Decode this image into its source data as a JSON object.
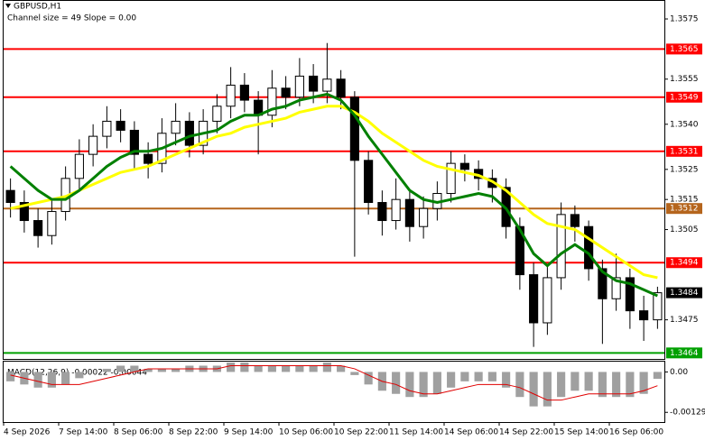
{
  "chart_data": [
    {
      "type": "candlestick",
      "title": "GBPUSD,H1",
      "subtitle": "Channel size = 49 Slope = 0.00",
      "categories": [
        "4 Sep 2026",
        null,
        null,
        null,
        "7 Sep 14:00",
        null,
        null,
        null,
        "8 Sep 06:00",
        null,
        null,
        null,
        "8 Sep 22:00",
        null,
        null,
        null,
        "9 Sep 14:00",
        null,
        null,
        null,
        "10 Sep 06:00",
        null,
        null,
        null,
        "10 Sep 22:00",
        null,
        null,
        null,
        "11 Sep 14:00",
        null,
        null,
        null,
        "14 Sep 06:00",
        null,
        null,
        null,
        "14 Sep 22:00",
        null,
        null,
        null,
        "15 Sep 14:00",
        null,
        null,
        null,
        "16 Sep 06:00",
        null,
        null,
        null
      ],
      "open": [
        1.3518,
        1.3514,
        1.3508,
        1.3503,
        1.3511,
        1.3522,
        1.353,
        1.3536,
        1.3541,
        1.3538,
        1.353,
        1.3527,
        1.3537,
        1.3541,
        1.3533,
        1.3541,
        1.3546,
        1.3553,
        1.3548,
        1.3543,
        1.3552,
        1.3549,
        1.3556,
        1.3551,
        1.3555,
        1.3549,
        1.3528,
        1.3514,
        1.3508,
        1.3515,
        1.3506,
        1.3512,
        1.3517,
        1.3527,
        1.3525,
        1.3522,
        1.3519,
        1.3506,
        1.349,
        1.3474,
        1.3489,
        1.351,
        1.3506,
        1.3492,
        1.3482,
        1.3489,
        1.3478,
        1.3475
      ],
      "high": [
        1.3522,
        1.3518,
        1.3512,
        1.3515,
        1.3526,
        1.3535,
        1.354,
        1.3546,
        1.3545,
        1.3541,
        1.3534,
        1.3542,
        1.3547,
        1.3544,
        1.3545,
        1.355,
        1.3559,
        1.3557,
        1.3551,
        1.3558,
        1.3556,
        1.3562,
        1.356,
        1.3567,
        1.3558,
        1.3551,
        1.3531,
        1.3518,
        1.3522,
        1.3518,
        1.3516,
        1.3521,
        1.3531,
        1.353,
        1.3528,
        1.3525,
        1.3522,
        1.3509,
        1.3494,
        1.3493,
        1.3514,
        1.3513,
        1.3508,
        1.3495,
        1.3497,
        1.3492,
        1.3483,
        1.3486
      ],
      "low": [
        1.3509,
        1.3504,
        1.3499,
        1.35,
        1.3508,
        1.3518,
        1.3526,
        1.3532,
        1.3534,
        1.3525,
        1.3522,
        1.3524,
        1.3533,
        1.3529,
        1.353,
        1.3537,
        1.3542,
        1.3544,
        1.353,
        1.3539,
        1.3545,
        1.3546,
        1.3547,
        1.3547,
        1.3545,
        1.3496,
        1.351,
        1.3503,
        1.3505,
        1.3501,
        1.3502,
        1.3508,
        1.3514,
        1.3521,
        1.3518,
        1.3514,
        1.3502,
        1.3485,
        1.3466,
        1.347,
        1.3485,
        1.3501,
        1.3488,
        1.3467,
        1.3478,
        1.3472,
        1.3468,
        1.3472
      ],
      "close": [
        1.3514,
        1.3508,
        1.3503,
        1.3511,
        1.3522,
        1.353,
        1.3536,
        1.3541,
        1.3538,
        1.353,
        1.3527,
        1.3537,
        1.3541,
        1.3533,
        1.3541,
        1.3546,
        1.3553,
        1.3548,
        1.3543,
        1.3552,
        1.3549,
        1.3556,
        1.3551,
        1.3555,
        1.3549,
        1.3528,
        1.3514,
        1.3508,
        1.3515,
        1.3506,
        1.3512,
        1.3517,
        1.3527,
        1.3525,
        1.3522,
        1.3519,
        1.3506,
        1.349,
        1.3474,
        1.3489,
        1.351,
        1.3506,
        1.3492,
        1.3482,
        1.3489,
        1.3478,
        1.3475,
        1.3484
      ],
      "overlays": [
        {
          "color": "#ffff00",
          "values": [
            1.3512,
            1.3513,
            1.3514,
            1.3515,
            1.3516,
            1.3518,
            1.352,
            1.3522,
            1.3524,
            1.3525,
            1.3526,
            1.3528,
            1.353,
            1.3532,
            1.3534,
            1.3536,
            1.3537,
            1.3539,
            1.354,
            1.3541,
            1.3542,
            1.3544,
            1.3545,
            1.3546,
            1.3546,
            1.3544,
            1.3541,
            1.3537,
            1.3534,
            1.3531,
            1.3528,
            1.3526,
            1.3525,
            1.3524,
            1.3523,
            1.3521,
            1.3518,
            1.3514,
            1.351,
            1.3507,
            1.3506,
            1.3505,
            1.3502,
            1.3499,
            1.3496,
            1.3493,
            1.349,
            1.3489
          ]
        },
        {
          "color": "#008000",
          "values": [
            1.3526,
            1.3522,
            1.3518,
            1.3515,
            1.3515,
            1.3518,
            1.3522,
            1.3526,
            1.3529,
            1.3531,
            1.3531,
            1.3532,
            1.3534,
            1.3536,
            1.3537,
            1.3538,
            1.3541,
            1.3543,
            1.3543,
            1.3545,
            1.3546,
            1.3548,
            1.3549,
            1.355,
            1.3548,
            1.3543,
            1.3536,
            1.353,
            1.3524,
            1.3518,
            1.3515,
            1.3514,
            1.3515,
            1.3516,
            1.3517,
            1.3516,
            1.3512,
            1.3505,
            1.3497,
            1.3493,
            1.3497,
            1.35,
            1.3497,
            1.3491,
            1.3488,
            1.3487,
            1.3485,
            1.3483
          ]
        }
      ],
      "levels": [
        {
          "value": 1.3565,
          "color": "#ff0000"
        },
        {
          "value": 1.3549,
          "color": "#ff0000"
        },
        {
          "value": 1.3531,
          "color": "#ff0000"
        },
        {
          "value": 1.3512,
          "color": "#b5651d"
        },
        {
          "value": 1.3494,
          "color": "#ff0000"
        },
        {
          "value": 1.3464,
          "color": "#00a000"
        }
      ],
      "current_price": 1.3484,
      "ylim": [
        1.3462,
        1.3581
      ],
      "yticks": [
        1.3575,
        1.3555,
        {
          "value": 1.354,
          "label": "1.3540"
        },
        1.3525,
        1.3515,
        1.3505,
        1.3475
      ]
    },
    {
      "type": "macd",
      "title": "MACD(12,26,9) -0.00022 -0.00044",
      "histogram": [
        -0.0003,
        -0.0004,
        -0.0005,
        -0.0005,
        -0.0004,
        -0.0002,
        0.0,
        0.0001,
        0.0002,
        0.0002,
        0.0001,
        0.0001,
        0.0001,
        0.0002,
        0.0002,
        0.0002,
        0.0003,
        0.0003,
        0.0002,
        0.0002,
        0.0002,
        0.0002,
        0.0002,
        0.0003,
        0.0002,
        -0.0001,
        -0.0004,
        -0.0006,
        -0.0007,
        -0.0008,
        -0.0008,
        -0.0007,
        -0.0005,
        -0.0003,
        -0.0003,
        -0.0003,
        -0.0005,
        -0.0008,
        -0.0011,
        -0.0011,
        -0.0008,
        -0.0006,
        -0.0006,
        -0.0008,
        -0.0008,
        -0.0008,
        -0.0007,
        -0.00022
      ],
      "signal": [
        -0.0001,
        -0.0002,
        -0.0003,
        -0.0004,
        -0.0004,
        -0.0004,
        -0.0003,
        -0.0002,
        -0.0001,
        0.0,
        0.0001,
        0.0001,
        0.0001,
        0.0001,
        0.0001,
        0.0001,
        0.0002,
        0.0002,
        0.0002,
        0.0002,
        0.0002,
        0.0002,
        0.0002,
        0.0002,
        0.0002,
        0.0001,
        -0.0001,
        -0.0003,
        -0.0004,
        -0.0006,
        -0.0007,
        -0.0007,
        -0.0006,
        -0.0005,
        -0.0004,
        -0.0004,
        -0.0004,
        -0.0005,
        -0.0007,
        -0.0009,
        -0.0009,
        -0.0008,
        -0.0007,
        -0.0007,
        -0.0007,
        -0.0007,
        -0.0006,
        -0.00044
      ],
      "histogram_color": "#a0a0a0",
      "signal_color": "#e00000",
      "ylim": [
        -0.0016,
        0.0003
      ],
      "yticks": [
        {
          "value": 0,
          "label": "0.00"
        },
        -0.00129
      ]
    }
  ]
}
